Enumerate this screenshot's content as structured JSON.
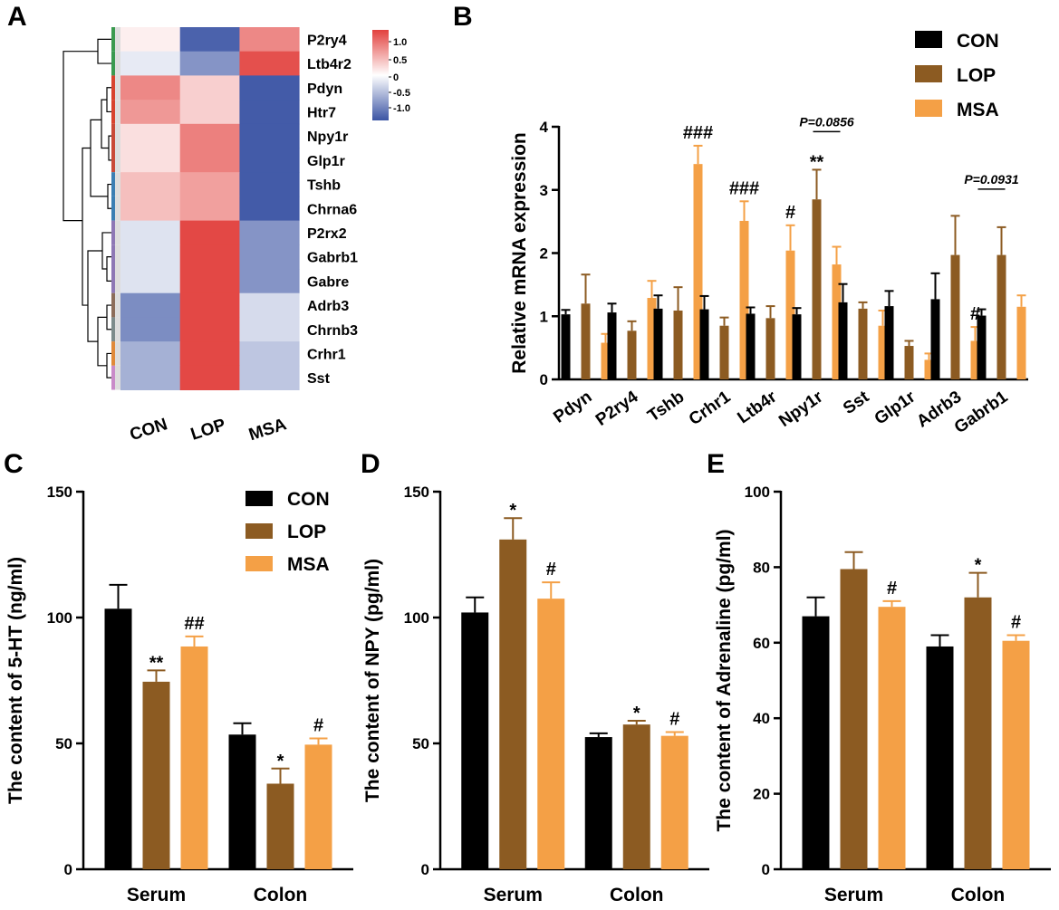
{
  "colors": {
    "CON": "#000000",
    "LOP": "#8c5b22",
    "MSA": "#f4a046",
    "heat_low": "#3b54a4",
    "heat_mid": "#ffffff",
    "heat_high": "#e2403d"
  },
  "chart_data": [
    {
      "type": "heatmap",
      "panel": "A",
      "columns": [
        "CON",
        "LOP",
        "MSA"
      ],
      "rows": [
        "P2ry4",
        "Ltb4r2",
        "Pdyn",
        "Htr7",
        "Npy1r",
        "Glp1r",
        "Tshb",
        "Chrna6",
        "P2rx2",
        "Gabrb1",
        "Gabre",
        "Adrb3",
        "Chrnb3",
        "Crhr1",
        "Sst"
      ],
      "values": [
        [
          0.1,
          -1.1,
          0.75
        ],
        [
          -0.15,
          -0.75,
          1.1
        ],
        [
          0.75,
          0.3,
          -1.15
        ],
        [
          0.65,
          0.3,
          -1.15
        ],
        [
          0.2,
          0.8,
          -1.15
        ],
        [
          0.2,
          0.8,
          -1.15
        ],
        [
          0.4,
          0.6,
          -1.15
        ],
        [
          0.4,
          0.6,
          -1.15
        ],
        [
          -0.2,
          1.15,
          -0.75
        ],
        [
          -0.2,
          1.15,
          -0.75
        ],
        [
          -0.2,
          1.15,
          -0.75
        ],
        [
          -0.8,
          1.15,
          -0.25
        ],
        [
          -0.8,
          1.15,
          -0.25
        ],
        [
          -0.55,
          1.15,
          -0.4
        ],
        [
          -0.55,
          1.15,
          -0.4
        ]
      ],
      "scale_ticks": [
        "1.0",
        "0.5",
        "0",
        "-0.5",
        "-1.0"
      ],
      "scale_range": [
        -1.2,
        1.2
      ],
      "group_colors": [
        "#3a9a4f",
        "#3a9a4f",
        "#d8432e",
        "#d8432e",
        "#c94a38",
        "#c94a38",
        "#3b7fb3",
        "#3b7fb3",
        "#8e78b5",
        "#8e78b5",
        "#8e78b5",
        "#8c6d5a",
        "#7d8c8c",
        "#e08a3a",
        "#c98bc9"
      ]
    },
    {
      "type": "bar",
      "panel": "B",
      "ylabel": "Relative mRNA expression",
      "ylim": [
        0,
        4
      ],
      "yticks": [
        "0",
        "1",
        "2",
        "3",
        "4"
      ],
      "categories": [
        "Pdyn",
        "P2ry4",
        "Tshb",
        "Crhr1",
        "Ltb4r",
        "Npy1r",
        "Sst",
        "Glp1r",
        "Adrb3",
        "Gabrb1"
      ],
      "series": [
        {
          "name": "CON",
          "values": [
            1.03,
            1.06,
            1.12,
            1.11,
            1.04,
            1.03,
            1.22,
            1.16,
            1.27,
            1.01
          ],
          "errors": [
            0.07,
            0.14,
            0.21,
            0.21,
            0.1,
            0.1,
            0.29,
            0.24,
            0.41,
            0.1
          ]
        },
        {
          "name": "LOP",
          "values": [
            1.2,
            0.77,
            1.09,
            0.85,
            0.97,
            2.85,
            1.12,
            0.53,
            1.97,
            1.97
          ],
          "errors": [
            0.46,
            0.15,
            0.37,
            0.13,
            0.19,
            0.47,
            0.1,
            0.08,
            0.62,
            0.44
          ]
        },
        {
          "name": "MSA",
          "values": [
            0.58,
            1.29,
            3.41,
            2.51,
            2.04,
            1.82,
            0.85,
            0.31,
            0.61,
            1.15
          ],
          "errors": [
            0.14,
            0.27,
            0.29,
            0.31,
            0.4,
            0.28,
            0.24,
            0.1,
            0.22,
            0.18
          ]
        }
      ],
      "significance": [
        {
          "category": "Tshb",
          "series": "MSA",
          "label": "###"
        },
        {
          "category": "Crhr1",
          "series": "MSA",
          "label": "###"
        },
        {
          "category": "Ltb4r",
          "series": "MSA",
          "label": "#"
        },
        {
          "category": "Npy1r",
          "series": "LOP",
          "label": "**"
        },
        {
          "category": "Adrb3",
          "series": "MSA",
          "label": "#"
        }
      ],
      "pvalues": [
        {
          "category": "Npy1r",
          "from": "LOP",
          "to": "MSA",
          "label": "P=0.0856"
        },
        {
          "category": "Gabrb1",
          "from": "CON",
          "to": "LOP",
          "label": "P=0.0931"
        }
      ],
      "legend": [
        "CON",
        "LOP",
        "MSA"
      ],
      "legend_position": "top-right"
    },
    {
      "type": "bar",
      "panel": "C",
      "ylabel": "The content of 5-HT (ng/ml)",
      "ylim": [
        0,
        150
      ],
      "yticks": [
        "0",
        "50",
        "100",
        "150"
      ],
      "categories": [
        "Serum",
        "Colon"
      ],
      "series": [
        {
          "name": "CON",
          "values": [
            103.5,
            53.5
          ],
          "errors": [
            9.5,
            4.5
          ]
        },
        {
          "name": "LOP",
          "values": [
            74.5,
            34.0
          ],
          "errors": [
            4.5,
            6.0
          ]
        },
        {
          "name": "MSA",
          "values": [
            88.5,
            49.5
          ],
          "errors": [
            4.0,
            2.5
          ]
        }
      ],
      "significance": [
        {
          "category": "Serum",
          "series": "LOP",
          "label": "**"
        },
        {
          "category": "Serum",
          "series": "MSA",
          "label": "##"
        },
        {
          "category": "Colon",
          "series": "LOP",
          "label": "*"
        },
        {
          "category": "Colon",
          "series": "MSA",
          "label": "#"
        }
      ],
      "legend": [
        "CON",
        "LOP",
        "MSA"
      ],
      "legend_position": "top-right"
    },
    {
      "type": "bar",
      "panel": "D",
      "ylabel": "The content of NPY (pg/ml)",
      "ylim": [
        0,
        150
      ],
      "yticks": [
        "0",
        "50",
        "100",
        "150"
      ],
      "categories": [
        "Serum",
        "Colon"
      ],
      "series": [
        {
          "name": "CON",
          "values": [
            102.0,
            52.5
          ],
          "errors": [
            6.0,
            1.5
          ]
        },
        {
          "name": "LOP",
          "values": [
            131.0,
            57.5
          ],
          "errors": [
            8.5,
            1.5
          ]
        },
        {
          "name": "MSA",
          "values": [
            107.5,
            53.0
          ],
          "errors": [
            6.5,
            1.5
          ]
        }
      ],
      "significance": [
        {
          "category": "Serum",
          "series": "LOP",
          "label": "*"
        },
        {
          "category": "Serum",
          "series": "MSA",
          "label": "#"
        },
        {
          "category": "Colon",
          "series": "LOP",
          "label": "*"
        },
        {
          "category": "Colon",
          "series": "MSA",
          "label": "#"
        }
      ]
    },
    {
      "type": "bar",
      "panel": "E",
      "ylabel": "The content of  Adrenaline (pg/ml)",
      "ylim": [
        0,
        100
      ],
      "yticks": [
        "0",
        "20",
        "40",
        "60",
        "80",
        "100"
      ],
      "categories": [
        "Serum",
        "Colon"
      ],
      "series": [
        {
          "name": "CON",
          "values": [
            67.0,
            59.0
          ],
          "errors": [
            5.0,
            3.0
          ]
        },
        {
          "name": "LOP",
          "values": [
            79.5,
            72.0
          ],
          "errors": [
            4.5,
            6.5
          ]
        },
        {
          "name": "MSA",
          "values": [
            69.5,
            60.5
          ],
          "errors": [
            1.5,
            1.5
          ]
        }
      ],
      "significance": [
        {
          "category": "Serum",
          "series": "MSA",
          "label": "#"
        },
        {
          "category": "Colon",
          "series": "LOP",
          "label": "*"
        },
        {
          "category": "Colon",
          "series": "MSA",
          "label": "#"
        }
      ]
    }
  ]
}
